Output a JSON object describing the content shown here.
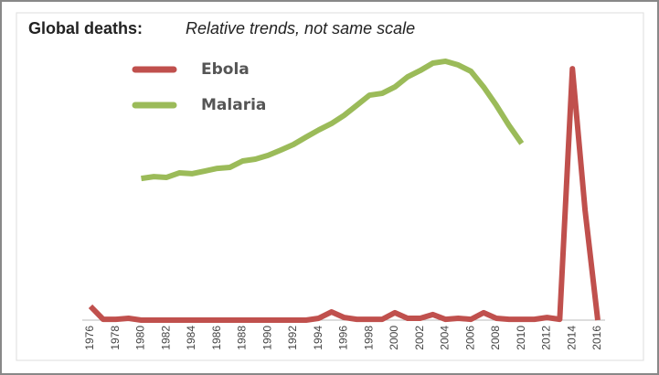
{
  "chart_data": {
    "type": "line",
    "title": "Global deaths:",
    "subtitle": "Relative trends, not same scale",
    "categories": [
      "1976",
      null,
      "1978",
      null,
      "1980",
      null,
      "1982",
      null,
      "1984",
      null,
      "1986",
      null,
      "1988",
      null,
      "1990",
      null,
      "1992",
      null,
      "1994",
      null,
      "1996",
      null,
      "1998",
      null,
      "2000",
      null,
      "2002",
      null,
      "2004",
      null,
      "2006",
      null,
      "2008",
      null,
      "2010",
      null,
      "2012",
      null,
      "2014",
      null,
      "2016"
    ],
    "series": [
      {
        "name": "Ebola",
        "color": "#c0504d",
        "values": [
          5.2,
          0.3,
          0.3,
          0.7,
          0,
          0,
          0,
          0,
          0,
          0,
          0,
          0,
          0,
          0,
          0,
          0,
          0,
          0,
          0.7,
          3.1,
          1,
          0.3,
          0.3,
          0.3,
          2.8,
          0.7,
          0.7,
          2.1,
          0.3,
          0.7,
          0.3,
          2.8,
          0.7,
          0.3,
          0.3,
          0.3,
          1,
          0.3,
          94.8,
          41.4,
          0
        ]
      },
      {
        "name": "Malaria",
        "color": "#9bbb59",
        "values": [
          null,
          null,
          null,
          null,
          53.4,
          54.1,
          53.8,
          55.5,
          55.2,
          56.2,
          57.2,
          57.6,
          60.0,
          60.7,
          62.1,
          64.1,
          66.2,
          69.0,
          71.7,
          74.1,
          77.2,
          81.0,
          84.8,
          85.5,
          87.9,
          91.7,
          94.1,
          96.9,
          97.6,
          96.2,
          93.8,
          87.9,
          81.0,
          73.4,
          66.6,
          null,
          null,
          null,
          null,
          null,
          null
        ]
      }
    ],
    "ylim": [
      0,
      100
    ],
    "legend": "upper left"
  }
}
